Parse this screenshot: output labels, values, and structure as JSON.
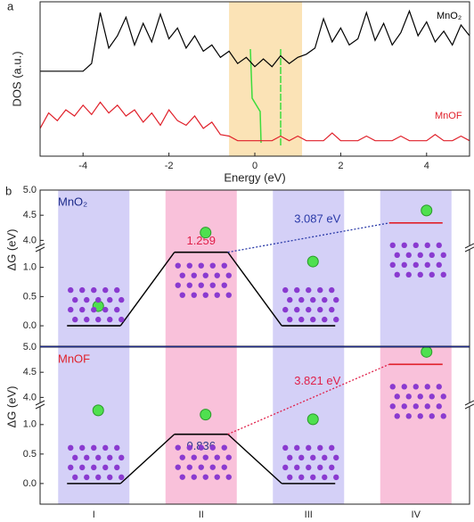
{
  "chart_data": [
    {
      "type": "line",
      "xlabel": "Energy (eV)",
      "ylabel": "DOS (a.u.)",
      "xlim": [
        -5,
        5
      ],
      "xticks": [
        -4,
        -2,
        0,
        2,
        4
      ],
      "ylim": [
        0,
        10
      ],
      "highlight": [
        -0.6,
        1.1
      ],
      "highlight_color": "#fbe3b6",
      "x": [
        -5,
        -4.8,
        -4.6,
        -4.4,
        -4.2,
        -4,
        -3.8,
        -3.6,
        -3.4,
        -3.2,
        -3,
        -2.8,
        -2.6,
        -2.4,
        -2.2,
        -2,
        -1.8,
        -1.6,
        -1.4,
        -1.2,
        -1,
        -0.8,
        -0.6,
        -0.4,
        -0.2,
        0,
        0.2,
        0.4,
        0.6,
        0.8,
        1,
        1.2,
        1.4,
        1.6,
        1.8,
        2,
        2.2,
        2.4,
        2.6,
        2.8,
        3,
        3.2,
        3.4,
        3.6,
        3.8,
        4,
        4.2,
        4.4,
        4.6,
        4.8,
        5
      ],
      "series": [
        {
          "name": "MnO₂",
          "color": "#000000",
          "values": [
            5.5,
            5.5,
            5.5,
            5.5,
            5.5,
            5.5,
            6.0,
            9.3,
            7.0,
            7.8,
            9.0,
            7.2,
            8.6,
            7.4,
            9.2,
            7.6,
            8.3,
            7.0,
            7.8,
            6.8,
            7.2,
            6.4,
            6.8,
            6.0,
            6.4,
            5.8,
            6.3,
            5.8,
            6.5,
            6.0,
            6.4,
            6.6,
            7.0,
            8.9,
            7.4,
            8.3,
            7.2,
            7.6,
            9.3,
            7.5,
            8.6,
            7.2,
            8.0,
            9.4,
            7.8,
            8.7,
            7.4,
            8.1,
            7.2,
            8.5,
            7.8
          ]
        },
        {
          "name": "MnOF",
          "color": "#e0202a",
          "values": [
            1.8,
            2.8,
            2.3,
            3.0,
            2.6,
            3.3,
            2.7,
            3.5,
            2.8,
            3.3,
            2.6,
            3.0,
            2.2,
            2.8,
            2.0,
            3.0,
            2.3,
            2.0,
            2.6,
            1.8,
            2.2,
            1.4,
            1.3,
            1.0,
            1.0,
            1.0,
            1.0,
            1.0,
            1.3,
            1.0,
            1.3,
            1.0,
            1.0,
            1.0,
            1.5,
            1.0,
            1.0,
            1.0,
            1.3,
            1.0,
            1.0,
            1.0,
            1.3,
            1.0,
            1.0,
            1.0,
            1.4,
            1.0,
            1.0,
            1.3,
            1.0
          ]
        }
      ]
    },
    {
      "type": "energy",
      "title": "MnO₂",
      "title_color": "#1c2a8a",
      "ylabel": "ΔG (eV)",
      "ylim": [
        -0.35,
        5.0
      ],
      "ybreak": [
        1.3,
        3.9
      ],
      "yticks": [
        {
          "value": 0,
          "label": "0.0"
        },
        0.5,
        {
          "value": 1,
          "label": "1.0"
        },
        {
          "value": 4,
          "label": "4.0"
        },
        4.5,
        {
          "value": 5,
          "label": "5.0"
        }
      ],
      "values": [
        0,
        1.259,
        0,
        4.346
      ],
      "value_label_color": "#e0204a",
      "gap_label": "3.087 eV",
      "gap_color": "#2a3aa8",
      "column_colors": [
        "#cdc8f6",
        "#f8b6d4",
        "#cdc8f6",
        "#cdc8f6"
      ],
      "level_colors": [
        "#000000",
        "#000000",
        "#000000",
        "#e0202a"
      ]
    },
    {
      "type": "energy",
      "title": "MnOF",
      "title_color": "#e0202a",
      "ylabel": "ΔG (eV)",
      "ylim": [
        -0.35,
        5.0
      ],
      "ybreak": [
        1.3,
        3.9
      ],
      "yticks": [
        {
          "value": 0,
          "label": "0.0"
        },
        0.5,
        {
          "value": 1,
          "label": "1.0"
        },
        {
          "value": 4,
          "label": "4.0"
        },
        4.5,
        {
          "value": 5,
          "label": "5.0"
        }
      ],
      "values": [
        0,
        0.836,
        0,
        4.657
      ],
      "value_label_color": "#2a3a8a",
      "gap_label": "3.821 eV",
      "gap_color": "#e0204a",
      "column_colors": [
        "#cdc8f6",
        "#f8b6d4",
        "#cdc8f6",
        "#f8b6d4"
      ],
      "level_colors": [
        "#000000",
        "#000000",
        "#000000",
        "#e0202a"
      ],
      "categories": [
        "I",
        "II",
        "III",
        "IV"
      ]
    }
  ],
  "panel_labels": [
    "a",
    "b"
  ]
}
